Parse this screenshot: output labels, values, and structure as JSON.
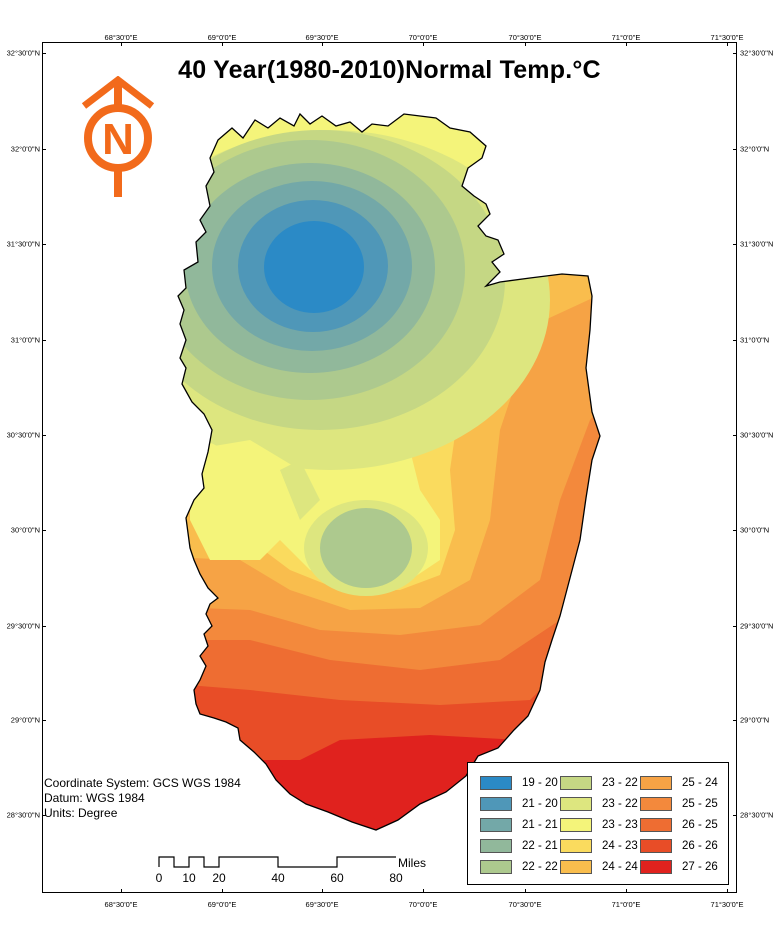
{
  "title": "40 Year(1980-2010)Normal Temp.°C",
  "north_arrow": {
    "letter": "N",
    "color": "#f26a1b"
  },
  "graticule": {
    "longitudes": [
      "68°30'0\"E",
      "69°0'0\"E",
      "69°30'0\"E",
      "70°0'0\"E",
      "70°30'0\"E",
      "71°0'0\"E",
      "71°30'0\"E"
    ],
    "latitudes": [
      "32°30'0\"N",
      "32°0'0\"N",
      "31°30'0\"N",
      "31°0'0\"N",
      "30°30'0\"N",
      "30°0'0\"N",
      "29°30'0\"N",
      "29°0'0\"N",
      "28°30'0\"N"
    ]
  },
  "coordinate_info": {
    "system": "Coordinate System: GCS WGS 1984",
    "datum": "Datum: WGS 1984",
    "units": "Units: Degree"
  },
  "scale_bar": {
    "labels": [
      "0",
      "10",
      "20",
      "40",
      "60",
      "80"
    ],
    "unit": "Miles"
  },
  "legend": {
    "items": [
      {
        "label": "19 - 20",
        "color": "#2b8ac6"
      },
      {
        "label": "21 - 20",
        "color": "#4f97b8"
      },
      {
        "label": "21 - 21",
        "color": "#73a8a8"
      },
      {
        "label": "22 - 21",
        "color": "#91b89b"
      },
      {
        "label": "22 - 22",
        "color": "#adc98e"
      },
      {
        "label": "23 - 22",
        "color": "#c5d784"
      },
      {
        "label": "23 - 22",
        "color": "#dde67f"
      },
      {
        "label": "23 - 23",
        "color": "#f4f47a"
      },
      {
        "label": "24 - 23",
        "color": "#fadb5e"
      },
      {
        "label": "24 - 24",
        "color": "#f9bd4d"
      },
      {
        "label": "25 - 24",
        "color": "#f6a345"
      },
      {
        "label": "25 - 25",
        "color": "#f3893c"
      },
      {
        "label": "26 - 25",
        "color": "#ee6d32"
      },
      {
        "label": "26 - 26",
        "color": "#e84d27"
      },
      {
        "label": "27 - 26",
        "color": "#e0221e"
      }
    ]
  }
}
